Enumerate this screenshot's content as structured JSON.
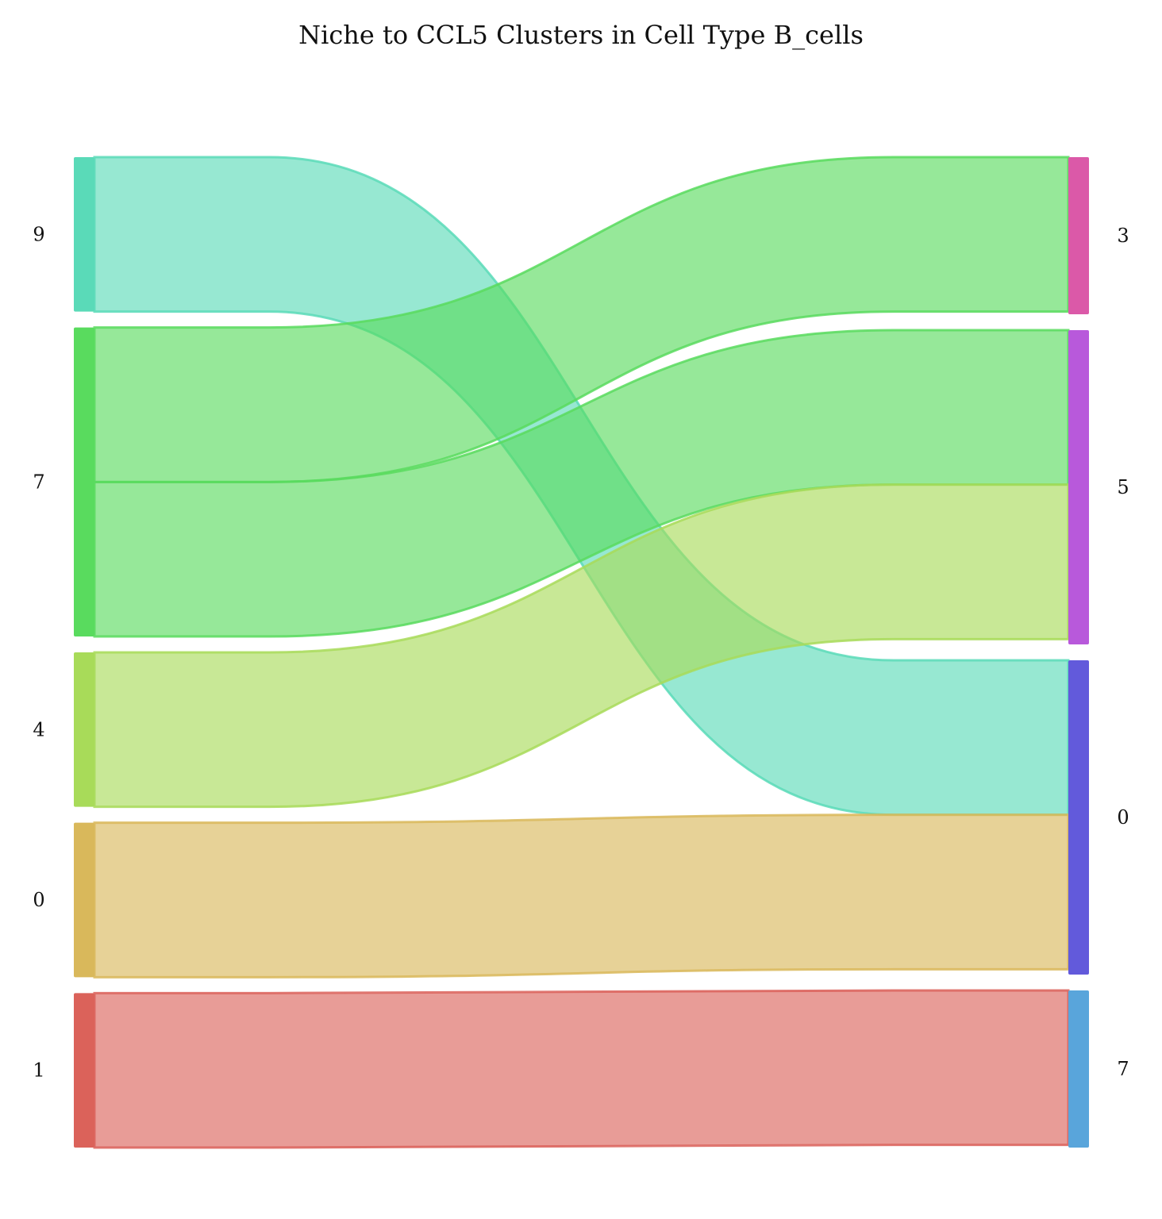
{
  "title": "Niche to CCL5 Clusters in Cell Type B_cells",
  "chart_data": {
    "type": "sankey",
    "title": "Niche to CCL5 Clusters in Cell Type B_cells",
    "left_nodes": [
      {
        "id": "L9",
        "label": "9",
        "color": "#5ADAB8"
      },
      {
        "id": "L7",
        "label": "7",
        "color": "#59DB5E"
      },
      {
        "id": "L4",
        "label": "4",
        "color": "#A8DB59"
      },
      {
        "id": "L0",
        "label": "0",
        "color": "#D9B85B"
      },
      {
        "id": "L1",
        "label": "1",
        "color": "#DB625A"
      }
    ],
    "right_nodes": [
      {
        "id": "R3",
        "label": "3",
        "color": "#DB59A8"
      },
      {
        "id": "R5",
        "label": "5",
        "color": "#B859DB"
      },
      {
        "id": "R0",
        "label": "0",
        "color": "#625ADB"
      },
      {
        "id": "R7",
        "label": "7",
        "color": "#59A5DB"
      }
    ],
    "links": [
      {
        "source": "L9",
        "target": "R0",
        "value": 1,
        "color": "#5ADAB8"
      },
      {
        "source": "L7",
        "target": "R3",
        "value": 1,
        "color": "#59DB5E"
      },
      {
        "source": "L7",
        "target": "R5",
        "value": 1,
        "color": "#59DB5E"
      },
      {
        "source": "L4",
        "target": "R5",
        "value": 1,
        "color": "#A8DB59"
      },
      {
        "source": "L0",
        "target": "R0",
        "value": 1,
        "color": "#D9B85B"
      },
      {
        "source": "L1",
        "target": "R7",
        "value": 1,
        "color": "#DB625A"
      }
    ]
  }
}
